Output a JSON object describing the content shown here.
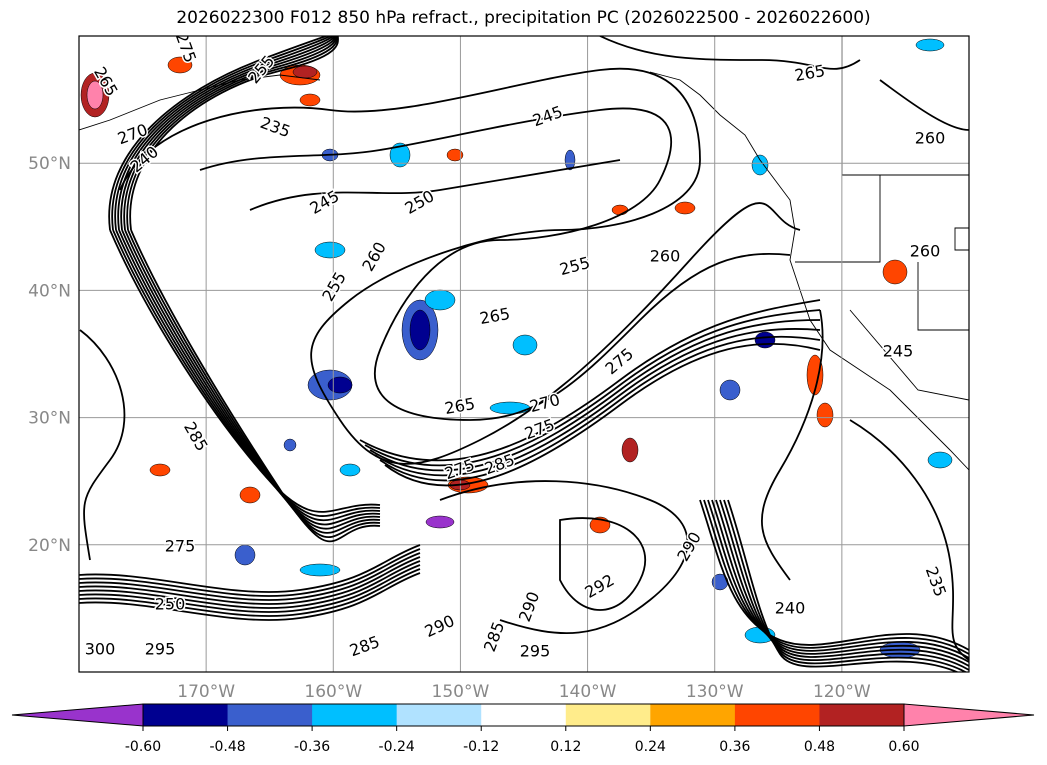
{
  "title": "2026022300 F012 850 hPa refract., precipitation PC (2026022500 - 2026022600)",
  "map": {
    "extent": {
      "lon_west": -180,
      "lon_east": -110,
      "lat_south": 10,
      "lat_north": 60
    },
    "lat_labels": [
      {
        "value": 50,
        "label": "50°N"
      },
      {
        "value": 40,
        "label": "40°N"
      },
      {
        "value": 30,
        "label": "30°N"
      },
      {
        "value": 20,
        "label": "20°N"
      }
    ],
    "lon_labels": [
      {
        "value": -170,
        "label": "170°W"
      },
      {
        "value": -160,
        "label": "160°W"
      },
      {
        "value": -150,
        "label": "150°W"
      },
      {
        "value": -140,
        "label": "140°W"
      },
      {
        "value": -130,
        "label": "130°W"
      },
      {
        "value": -120,
        "label": "120°W"
      }
    ],
    "contour_labels": [
      "275",
      "265",
      "270",
      "240",
      "235",
      "255",
      "245",
      "265",
      "260",
      "245",
      "250",
      "260",
      "255",
      "255",
      "260",
      "260",
      "265",
      "245",
      "275",
      "265",
      "270",
      "275",
      "275",
      "285",
      "285",
      "290",
      "292",
      "240",
      "235",
      "290",
      "285",
      "295",
      "295",
      "300",
      "250",
      "275",
      "290",
      "285"
    ]
  },
  "colorbar": {
    "ticks": [
      "-0.60",
      "-0.48",
      "-0.36",
      "-0.24",
      "-0.12",
      "0.12",
      "0.24",
      "0.36",
      "0.48",
      "0.60"
    ],
    "colors": [
      "#9933cc",
      "#000090",
      "#3a5fcd",
      "#00bfff",
      "#b0e2ff",
      "#ffffff",
      "#ffec8b",
      "#ffa500",
      "#ff4500",
      "#b22222",
      "#ff82ab"
    ]
  }
}
